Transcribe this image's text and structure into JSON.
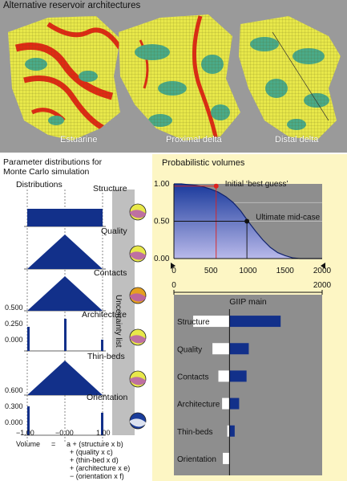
{
  "top": {
    "title": "Alternative reservoir architectures",
    "maps": [
      "Estuarine",
      "Proximal delta",
      "Distal delta"
    ]
  },
  "left": {
    "title_line1": "Parameter distributions for",
    "title_line2": "Monte Carlo simulation",
    "distributions_label": "Distributions",
    "uncertainty_label": "Uncertainty list",
    "params": [
      "Structure",
      "Quality",
      "Contacts",
      "Architecture",
      "Thin-beds",
      "Orientation"
    ],
    "architecture_ticks": [
      "0.500",
      "0.250",
      "0.000"
    ],
    "orientation_ticks": [
      "0.600",
      "0.300",
      "0.000"
    ],
    "x_ticks": [
      "−1.00",
      "−0.00",
      "1.00"
    ],
    "formula": {
      "lhs": "Volume",
      "eq": "=",
      "lines": [
        "a + (structure x b)",
        "+ (quality x c)",
        "+ (thin-bed x d)",
        "+ (architecture x e)",
        "− (orientation x f)"
      ]
    }
  },
  "right": {
    "title": "Probabilistic volumes",
    "annotations": [
      "Initial ‘best guess’",
      "Ultimate mid-case"
    ],
    "tornado_title": "GIIP main"
  },
  "chart_data": [
    {
      "type": "area",
      "title": "Probabilistic volumes",
      "x": [
        0,
        100,
        200,
        300,
        400,
        500,
        600,
        700,
        800,
        900,
        1000,
        1100,
        1200,
        1300,
        1400,
        1500,
        1600,
        1700,
        1800,
        1900,
        2000
      ],
      "y": [
        1.0,
        1.0,
        0.99,
        0.98,
        0.96,
        0.93,
        0.89,
        0.83,
        0.75,
        0.64,
        0.5,
        0.37,
        0.25,
        0.15,
        0.08,
        0.04,
        0.01,
        0.0,
        0.0,
        0.0,
        0.0
      ],
      "xlim": [
        0,
        2000
      ],
      "ylim": [
        0,
        1
      ],
      "x_ticks": [
        "0",
        "500",
        "1000",
        "1500",
        "2000"
      ],
      "y_ticks": [
        "1.00",
        "0.50",
        "0.00"
      ],
      "points": [
        {
          "label": "Initial ‘best guess’",
          "x": 570,
          "y": 0.97,
          "color": "#e0201c"
        },
        {
          "label": "Ultimate mid-case",
          "x": 985,
          "y": 0.5,
          "color": "#111111"
        }
      ],
      "grid": true
    },
    {
      "type": "bar",
      "title": "GIIP main",
      "orientation": "horizontal",
      "x_ticks": [
        "0",
        "2000"
      ],
      "xlim": [
        0,
        2000
      ],
      "base": 750,
      "categories": [
        "Structure",
        "Quality",
        "Contacts",
        "Architecture",
        "Thin-beds",
        "Orientation"
      ],
      "low": [
        260,
        520,
        600,
        650,
        720,
        660
      ],
      "high": [
        1440,
        1010,
        980,
        880,
        820,
        750
      ]
    }
  ],
  "colors": {
    "navy": "#12308a",
    "panel_yellow": "#fdf6c4",
    "uncertainty_grey": "#bfbfbf"
  }
}
